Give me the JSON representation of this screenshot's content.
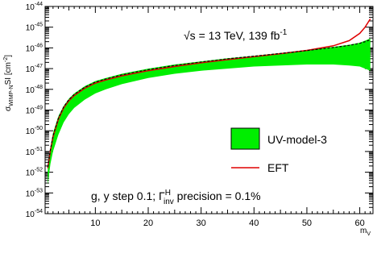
{
  "chart_data": {
    "type": "area",
    "xlabel": "m",
    "xlabel_sub": "V",
    "ylabel": "σ",
    "ylabel_sub": "WIMP-N",
    "ylabel_rest": "SI [cm",
    "ylabel_exp": "-2",
    "ylabel_close": "]",
    "xlim": [
      0.5,
      62.5
    ],
    "ylim_exp": [
      -54,
      -44
    ],
    "log_y": true,
    "x_ticks": [
      10,
      20,
      30,
      40,
      50,
      60
    ],
    "y_ticks_exp": [
      -54,
      -53,
      -52,
      -51,
      -50,
      -49,
      -48,
      -47,
      -46,
      -45,
      -44
    ],
    "annotation_top": {
      "sqrt": "√s",
      "rest": " = 13 TeV, 139 fb",
      "exp": "-1"
    },
    "annotation_bottom": {
      "prefix": "g, y step 0.1; Γ",
      "sup": "H",
      "sub": "inv",
      "suffix": " precision = 0.1%"
    },
    "legend": [
      {
        "label": "UV-model-3",
        "kind": "band",
        "color": "#00ee00"
      },
      {
        "label": "EFT",
        "kind": "line",
        "color": "#e00000"
      }
    ],
    "series": [
      {
        "name": "UV-model-3",
        "kind": "band",
        "color": "#00ee00",
        "x": [
          1,
          1.5,
          2,
          3,
          4,
          5,
          6,
          8,
          10,
          12,
          15,
          20,
          25,
          30,
          35,
          40,
          45,
          50,
          55,
          58,
          60,
          61,
          62
        ],
        "upper_log10": [
          -51.6,
          -50.8,
          -50.1,
          -49.3,
          -48.8,
          -48.45,
          -48.2,
          -47.85,
          -47.6,
          -47.45,
          -47.25,
          -47.0,
          -46.8,
          -46.65,
          -46.5,
          -46.38,
          -46.25,
          -46.1,
          -45.95,
          -45.85,
          -45.75,
          -45.65,
          -45.55
        ],
        "lower_log10": [
          -52.6,
          -51.6,
          -51.0,
          -50.2,
          -49.6,
          -49.2,
          -48.9,
          -48.5,
          -48.2,
          -48.0,
          -47.75,
          -47.45,
          -47.25,
          -47.1,
          -47.0,
          -46.9,
          -46.85,
          -46.8,
          -46.8,
          -46.85,
          -46.9,
          -47.0,
          -47.1
        ]
      },
      {
        "name": "EFT",
        "kind": "line",
        "color": "#e00000",
        "x": [
          1,
          1.5,
          2,
          3,
          4,
          5,
          6,
          8,
          10,
          12,
          15,
          20,
          25,
          30,
          35,
          40,
          45,
          50,
          55,
          58,
          60,
          61,
          62
        ],
        "y_log10": [
          -51.8,
          -50.95,
          -50.3,
          -49.45,
          -48.9,
          -48.55,
          -48.3,
          -47.95,
          -47.7,
          -47.55,
          -47.35,
          -47.1,
          -46.9,
          -46.72,
          -46.57,
          -46.42,
          -46.28,
          -46.12,
          -45.9,
          -45.65,
          -45.3,
          -45.0,
          -44.6
        ]
      },
      {
        "name": "",
        "kind": "dashed",
        "color": "#000000",
        "x": [
          1,
          1.5,
          2,
          3,
          4,
          5,
          6,
          8,
          10,
          12,
          15,
          20,
          25,
          30,
          35,
          40,
          45,
          50,
          55,
          58,
          60,
          61,
          62
        ],
        "y_log10": [
          -51.75,
          -50.9,
          -50.25,
          -49.4,
          -48.85,
          -48.5,
          -48.25,
          -47.9,
          -47.65,
          -47.5,
          -47.3,
          -47.05,
          -46.85,
          -46.68,
          -46.53,
          -46.4,
          -46.27,
          -46.13,
          -45.98,
          -45.88,
          -45.78,
          -45.7,
          -45.6
        ]
      }
    ]
  }
}
